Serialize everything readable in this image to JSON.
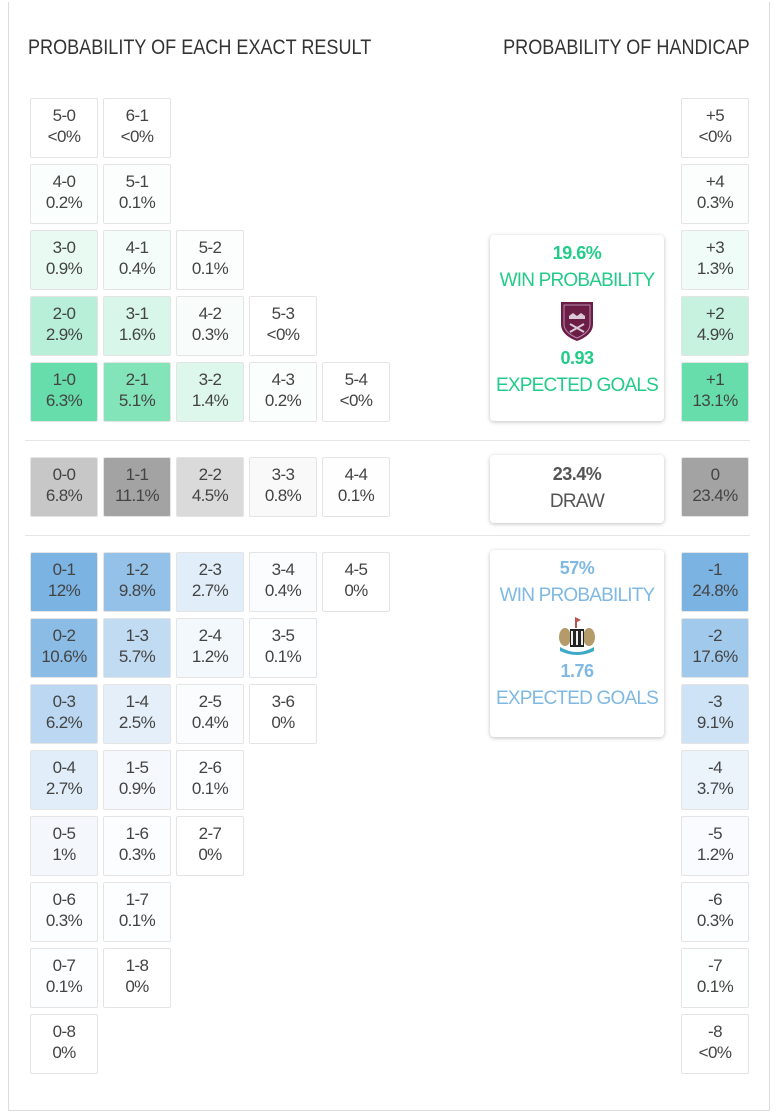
{
  "titles": {
    "exact": "PROBABILITY OF EACH EXACT RESULT",
    "handicap": "PROBABILITY OF HANDICAP"
  },
  "colors": {
    "home": "#1ecd82",
    "draw": "#8c8c8c",
    "away": "#3d8fd6",
    "home_text": "#22cc88",
    "away_text": "#7fb9e3"
  },
  "exact": {
    "home_rows": [
      [
        {
          "s": "5-0",
          "p": "<0%"
        },
        {
          "s": "6-1",
          "p": "<0%"
        }
      ],
      [
        {
          "s": "4-0",
          "p": "0.2%"
        },
        {
          "s": "5-1",
          "p": "0.1%"
        }
      ],
      [
        {
          "s": "3-0",
          "p": "0.9%"
        },
        {
          "s": "4-1",
          "p": "0.4%"
        },
        {
          "s": "5-2",
          "p": "0.1%"
        }
      ],
      [
        {
          "s": "2-0",
          "p": "2.9%"
        },
        {
          "s": "3-1",
          "p": "1.6%"
        },
        {
          "s": "4-2",
          "p": "0.3%"
        },
        {
          "s": "5-3",
          "p": "<0%"
        }
      ],
      [
        {
          "s": "1-0",
          "p": "6.3%"
        },
        {
          "s": "2-1",
          "p": "5.1%"
        },
        {
          "s": "3-2",
          "p": "1.4%"
        },
        {
          "s": "4-3",
          "p": "0.2%"
        },
        {
          "s": "5-4",
          "p": "<0%"
        }
      ]
    ],
    "draw_rows": [
      [
        {
          "s": "0-0",
          "p": "6.8%"
        },
        {
          "s": "1-1",
          "p": "11.1%"
        },
        {
          "s": "2-2",
          "p": "4.5%"
        },
        {
          "s": "3-3",
          "p": "0.8%"
        },
        {
          "s": "4-4",
          "p": "0.1%"
        }
      ]
    ],
    "away_rows": [
      [
        {
          "s": "0-1",
          "p": "12%"
        },
        {
          "s": "1-2",
          "p": "9.8%"
        },
        {
          "s": "2-3",
          "p": "2.7%"
        },
        {
          "s": "3-4",
          "p": "0.4%"
        },
        {
          "s": "4-5",
          "p": "0%"
        }
      ],
      [
        {
          "s": "0-2",
          "p": "10.6%"
        },
        {
          "s": "1-3",
          "p": "5.7%"
        },
        {
          "s": "2-4",
          "p": "1.2%"
        },
        {
          "s": "3-5",
          "p": "0.1%"
        }
      ],
      [
        {
          "s": "0-3",
          "p": "6.2%"
        },
        {
          "s": "1-4",
          "p": "2.5%"
        },
        {
          "s": "2-5",
          "p": "0.4%"
        },
        {
          "s": "3-6",
          "p": "0%"
        }
      ],
      [
        {
          "s": "0-4",
          "p": "2.7%"
        },
        {
          "s": "1-5",
          "p": "0.9%"
        },
        {
          "s": "2-6",
          "p": "0.1%"
        }
      ],
      [
        {
          "s": "0-5",
          "p": "1%"
        },
        {
          "s": "1-6",
          "p": "0.3%"
        },
        {
          "s": "2-7",
          "p": "0%"
        }
      ],
      [
        {
          "s": "0-6",
          "p": "0.3%"
        },
        {
          "s": "1-7",
          "p": "0.1%"
        }
      ],
      [
        {
          "s": "0-7",
          "p": "0.1%"
        },
        {
          "s": "1-8",
          "p": "0%"
        }
      ],
      [
        {
          "s": "0-8",
          "p": "0%"
        }
      ]
    ]
  },
  "handicap": {
    "home": [
      {
        "s": "+5",
        "p": "<0%"
      },
      {
        "s": "+4",
        "p": "0.3%"
      },
      {
        "s": "+3",
        "p": "1.3%"
      },
      {
        "s": "+2",
        "p": "4.9%"
      },
      {
        "s": "+1",
        "p": "13.1%"
      }
    ],
    "draw": [
      {
        "s": "0",
        "p": "23.4%"
      }
    ],
    "away": [
      {
        "s": "-1",
        "p": "24.8%"
      },
      {
        "s": "-2",
        "p": "17.6%"
      },
      {
        "s": "-3",
        "p": "9.1%"
      },
      {
        "s": "-4",
        "p": "3.7%"
      },
      {
        "s": "-5",
        "p": "1.2%"
      },
      {
        "s": "-6",
        "p": "0.3%"
      },
      {
        "s": "-7",
        "p": "0.1%"
      },
      {
        "s": "-8",
        "p": "<0%"
      }
    ]
  },
  "home_panel": {
    "win_pct": "19.6%",
    "win_label": "WIN PROBABILITY",
    "xg": "0.93",
    "xg_label": "EXPECTED GOALS",
    "crest": "burnley-crest-icon"
  },
  "draw_panel": {
    "pct": "23.4%",
    "label": "DRAW"
  },
  "away_panel": {
    "win_pct": "57%",
    "win_label": "WIN PROBABILITY",
    "xg": "1.76",
    "xg_label": "EXPECTED GOALS",
    "crest": "newcastle-crest-icon"
  }
}
